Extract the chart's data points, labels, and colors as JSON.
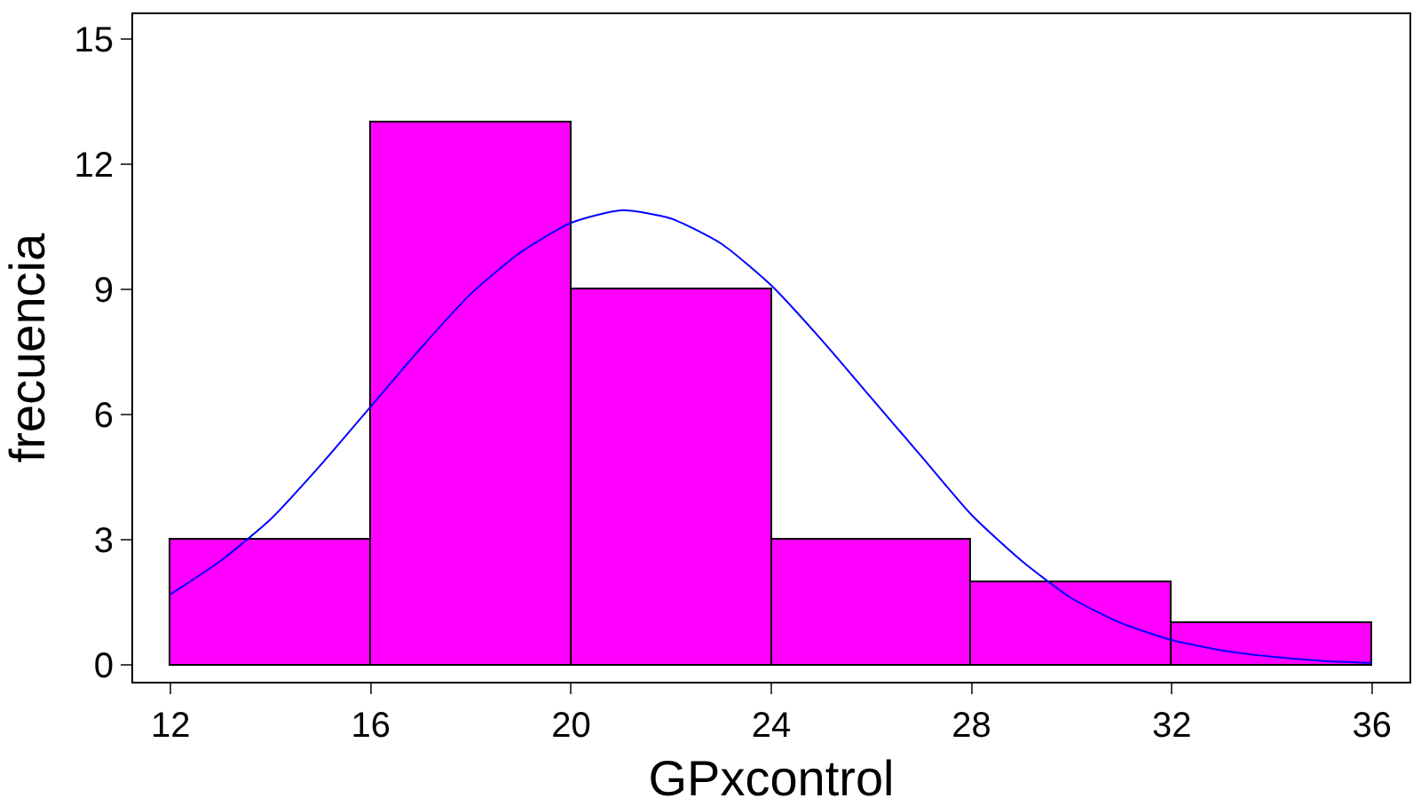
{
  "chart_data": {
    "type": "histogram",
    "xlabel": "GPxcontrol",
    "ylabel": "frecuencia",
    "bins": [
      12,
      16,
      20,
      24,
      28,
      32,
      36
    ],
    "values": [
      3,
      13,
      9,
      3,
      2,
      1
    ],
    "color": "#ff00ff",
    "series": [
      {
        "type": "line",
        "color": "#0000ff",
        "x": [
          12,
          13,
          14,
          15,
          16,
          17,
          18,
          19,
          20,
          21,
          22,
          23,
          24,
          25,
          26,
          27,
          28,
          29,
          30,
          31,
          32,
          33,
          34,
          35,
          36
        ],
        "values": [
          1.7,
          2.5,
          3.5,
          4.8,
          6.2,
          7.6,
          8.9,
          9.9,
          10.6,
          10.9,
          10.7,
          10.1,
          9.1,
          7.8,
          6.4,
          5.0,
          3.6,
          2.5,
          1.6,
          1.0,
          0.6,
          0.35,
          0.2,
          0.1,
          0.05
        ]
      }
    ],
    "xlim": [
      11.25,
      36.75
    ],
    "xticks": [
      12,
      16,
      20,
      24,
      28,
      32,
      36
    ],
    "ylim": [
      -0.4,
      15.6
    ],
    "yticks": [
      0,
      3,
      6,
      9,
      12,
      15
    ],
    "line_style": "solid"
  }
}
